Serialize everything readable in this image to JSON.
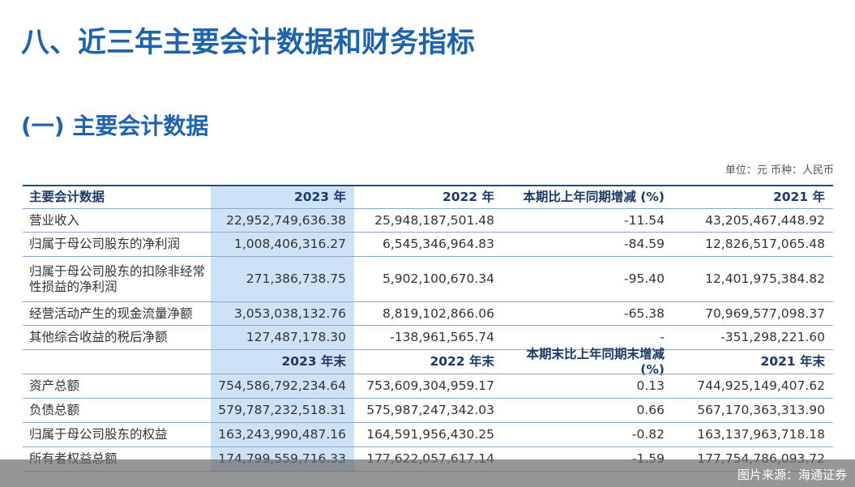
{
  "title": "八、近三年主要会计数据和财务指标",
  "subtitle": "(一) 主要会计数据",
  "unit": "单位：元  币种：人民币",
  "table": {
    "header": [
      "主要会计数据",
      "2023 年",
      "2022 年",
      "本期比上年同期增减 (%)",
      "2021 年"
    ],
    "rows": [
      [
        "营业收入",
        "22,952,749,636.38",
        "25,948,187,501.48",
        "-11.54",
        "43,205,467,448.92"
      ],
      [
        "归属于母公司股东的净利润",
        "1,008,406,316.27",
        "6,545,346,964.83",
        "-84.59",
        "12,826,517,065.48"
      ],
      [
        "归属于母公司股东的扣除非经常性损益的净利润",
        "271,386,738.75",
        "5,902,100,670.34",
        "-95.40",
        "12,401,975,384.82"
      ],
      [
        "经营活动产生的现金流量净额",
        "3,053,038,132.76",
        "8,819,102,866.06",
        "-65.38",
        "70,969,577,098.37"
      ],
      [
        "其他综合收益的税后净额",
        "127,487,178.30",
        "-138,961,565.74",
        "-",
        "-351,298,221.60"
      ]
    ],
    "header2": [
      "2023 年末",
      "2022 年末",
      "本期末比上年同期末增减(%)",
      "2021 年末"
    ],
    "rows2": [
      [
        "资产总额",
        "754,586,792,234.64",
        "753,609,304,959.17",
        "0.13",
        "744,925,149,407.62"
      ],
      [
        "负债总额",
        "579,787,232,518.31",
        "575,987,247,342.03",
        "0.66",
        "567,170,363,313.90"
      ],
      [
        "归属于母公司股东的权益",
        "163,243,990,487.16",
        "164,591,956,430.25",
        "-0.82",
        "163,137,963,718.18"
      ],
      [
        "所有者权益总额",
        "174,799,559,716.33",
        "177,622,057,617.14",
        "-1.59",
        "177,754,786,093.72"
      ]
    ]
  },
  "footer": "图片来源：海通证券"
}
